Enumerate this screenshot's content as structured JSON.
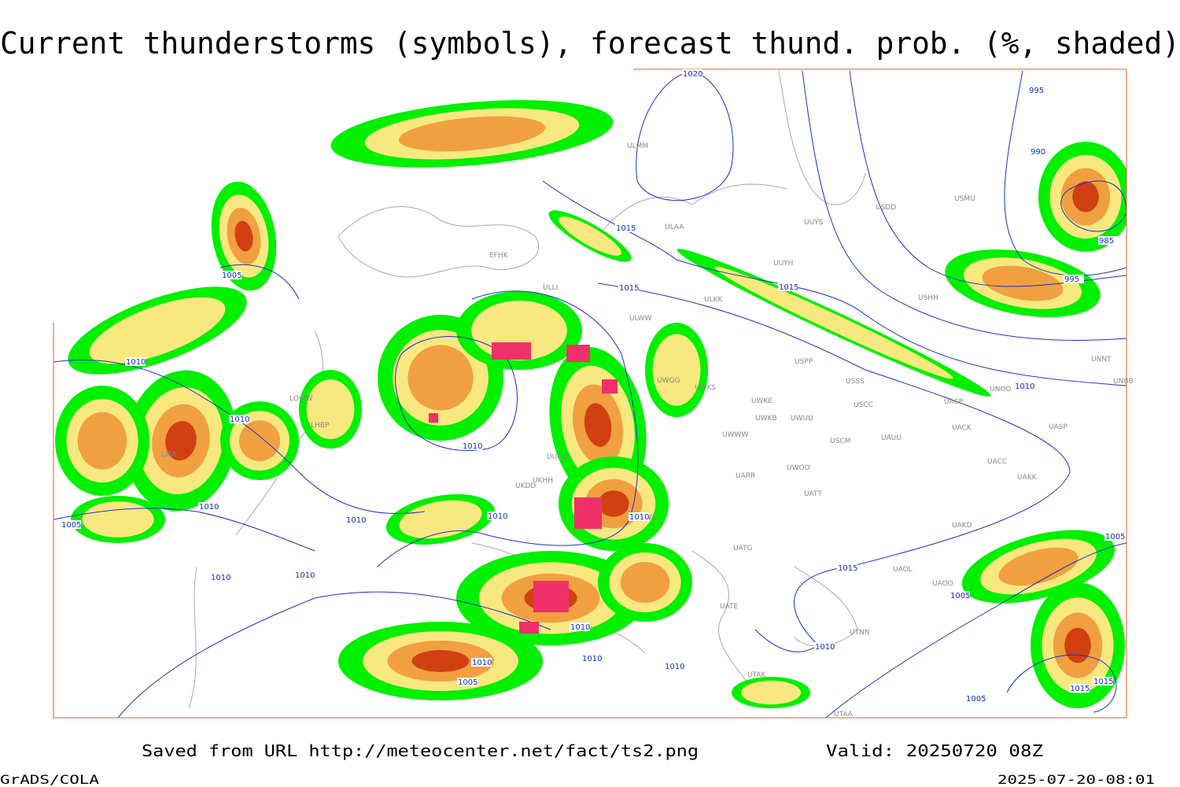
{
  "title": "Current thunderstorms (symbols), forecast thund. prob. (%, shaded)",
  "footer": {
    "source": "Saved from URL http://meteocenter.net/fact/ts2.png",
    "valid": "Valid: 20250720 08Z",
    "credit": "GrADS/COLA",
    "timestamp": "2025-07-20-08:01"
  },
  "isobar_labels": [
    "1020",
    "995",
    "990",
    "985",
    "995",
    "1015",
    "1015",
    "1015",
    "1005",
    "1010",
    "1010",
    "1010",
    "1010",
    "1005",
    "1010",
    "1010",
    "1010",
    "1010",
    "1010",
    "1015",
    "1005",
    "1010",
    "1010",
    "1005",
    "1010",
    "1010",
    "1010",
    "1015",
    "1015",
    "1005",
    "1010",
    "1005"
  ],
  "stations": [
    "ULMM",
    "ULAA",
    "UUYS",
    "UUYH",
    "USDD",
    "USMU",
    "ULKK",
    "ULWW",
    "USHH",
    "USPP",
    "UWGG",
    "UWKS",
    "UWKE",
    "UWKB",
    "UWUU",
    "UWWW",
    "USSS",
    "USCC",
    "USCM",
    "UAUU",
    "UNOO",
    "UNNT",
    "UNBB",
    "UACP",
    "UACK",
    "UASP",
    "UACC",
    "UAKK",
    "UWOO",
    "UARR",
    "UATT",
    "UAKD",
    "UATG",
    "UAOL",
    "UAOO",
    "UTNN",
    "UTAK",
    "UTAA",
    "URWA",
    "UATE",
    "UUOB",
    "UKHH",
    "UKDD",
    "EFHK",
    "ULLI",
    "LOWW",
    "LHBP",
    "LIRA"
  ]
}
